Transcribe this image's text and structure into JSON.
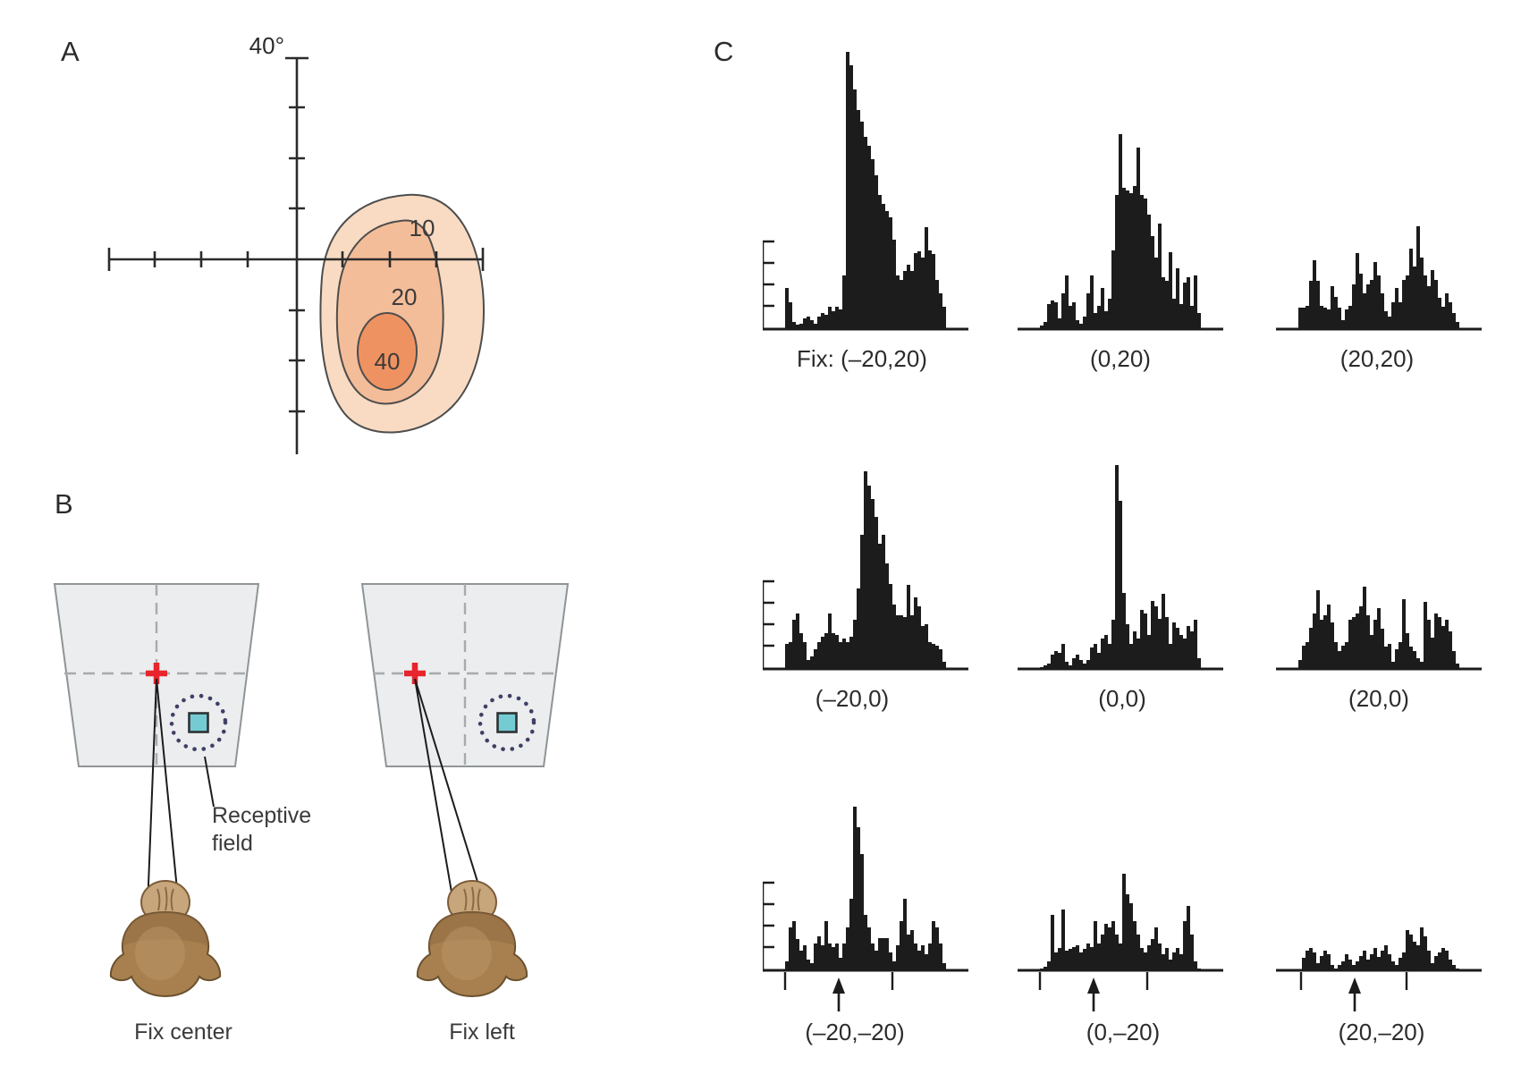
{
  "panels": {
    "a": {
      "label": "A",
      "axis_top_label": "40°",
      "contour_labels": [
        "10",
        "20",
        "40"
      ]
    },
    "b": {
      "label": "B",
      "receptive_field_label": "Receptive field",
      "captions": {
        "left": "Fix center",
        "right": "Fix left"
      }
    },
    "c": {
      "label": "C"
    }
  },
  "chart_data": [
    {
      "type": "contour",
      "title": "Receptive field response contours (spikes/s)",
      "axis_top_label": "40°",
      "axis_extent_deg": 40,
      "tick_step_deg": 10,
      "levels": [
        {
          "label": "10",
          "fill": "#f8dbc2"
        },
        {
          "label": "20",
          "fill": "#f4bd99"
        },
        {
          "label": "40",
          "fill": "#ef9261"
        }
      ],
      "field_center_quadrant": "lower-right"
    },
    {
      "type": "bar",
      "title": "Response histograms at nine fixation positions",
      "bar_color": "#1c1c1c",
      "y_scale_bar_ticks": 4,
      "stimulus_onset_arrow_rows": [
        2
      ],
      "histograms": [
        {
          "fixation_label": "Fix: (–20,20)",
          "row": 0,
          "col": 0,
          "values": [
            46,
            30,
            8,
            5,
            6,
            12,
            14,
            10,
            6,
            14,
            18,
            16,
            25,
            20,
            25,
            22,
            60,
            310,
            295,
            268,
            245,
            232,
            215,
            205,
            190,
            172,
            150,
            140,
            132,
            125,
            100,
            60,
            55,
            65,
            72,
            65,
            85,
            87,
            80,
            114,
            88,
            84,
            55,
            40,
            25
          ]
        },
        {
          "fixation_label": "(0,20)",
          "row": 0,
          "col": 1,
          "values": [
            4,
            8,
            28,
            32,
            30,
            12,
            40,
            60,
            26,
            30,
            10,
            6,
            14,
            40,
            60,
            18,
            26,
            46,
            20,
            34,
            88,
            150,
            218,
            158,
            155,
            152,
            160,
            203,
            150,
            146,
            128,
            104,
            80,
            118,
            58,
            54,
            86,
            34,
            68,
            28,
            52,
            58,
            26,
            60,
            18
          ]
        },
        {
          "fixation_label": "(20,20)",
          "row": 0,
          "col": 2,
          "values": [
            24,
            24,
            26,
            54,
            77,
            54,
            26,
            24,
            22,
            48,
            36,
            24,
            10,
            22,
            26,
            50,
            85,
            62,
            40,
            50,
            55,
            75,
            60,
            40,
            20,
            14,
            30,
            46,
            30,
            55,
            60,
            90,
            70,
            115,
            80,
            60,
            48,
            66,
            55,
            35,
            25,
            40,
            30,
            18,
            8
          ]
        },
        {
          "fixation_label": "(–20,0)",
          "row": 1,
          "col": 0,
          "values": [
            28,
            30,
            55,
            62,
            40,
            30,
            10,
            14,
            22,
            30,
            36,
            40,
            62,
            40,
            38,
            30,
            34,
            30,
            36,
            55,
            90,
            150,
            221,
            205,
            190,
            170,
            140,
            150,
            118,
            95,
            72,
            60,
            60,
            58,
            94,
            60,
            80,
            70,
            48,
            50,
            30,
            28,
            26,
            22,
            8
          ]
        },
        {
          "fixation_label": "(0,0)",
          "row": 1,
          "col": 1,
          "values": [
            2,
            4,
            6,
            16,
            20,
            18,
            28,
            8,
            4,
            12,
            16,
            10,
            6,
            10,
            24,
            28,
            18,
            34,
            38,
            28,
            55,
            228,
            188,
            85,
            50,
            28,
            42,
            34,
            66,
            62,
            38,
            76,
            70,
            56,
            84,
            58,
            28,
            52,
            46,
            38,
            34,
            48,
            42,
            55,
            12
          ]
        },
        {
          "fixation_label": "(20,0)",
          "row": 1,
          "col": 2,
          "values": [
            10,
            26,
            30,
            46,
            62,
            88,
            55,
            60,
            72,
            52,
            30,
            20,
            26,
            30,
            55,
            58,
            62,
            70,
            92,
            60,
            38,
            55,
            68,
            45,
            25,
            28,
            8,
            22,
            30,
            78,
            40,
            25,
            20,
            12,
            8,
            75,
            55,
            35,
            62,
            58,
            48,
            55,
            42,
            20,
            6
          ]
        },
        {
          "fixation_label": "(–20,–20)",
          "row": 2,
          "col": 0,
          "values": [
            10,
            48,
            55,
            35,
            22,
            28,
            12,
            8,
            30,
            38,
            28,
            55,
            30,
            26,
            30,
            14,
            30,
            48,
            80,
            183,
            160,
            130,
            62,
            48,
            30,
            22,
            36,
            36,
            36,
            20,
            10,
            28,
            55,
            80,
            40,
            45,
            30,
            22,
            28,
            18,
            30,
            55,
            48,
            30,
            8
          ]
        },
        {
          "fixation_label": "(0,–20)",
          "row": 2,
          "col": 1,
          "values": [
            2,
            4,
            10,
            62,
            20,
            25,
            68,
            22,
            24,
            26,
            28,
            20,
            24,
            30,
            26,
            55,
            30,
            40,
            52,
            48,
            55,
            40,
            30,
            108,
            85,
            75,
            55,
            40,
            25,
            20,
            28,
            35,
            48,
            30,
            18,
            25,
            12,
            20,
            25,
            18,
            55,
            72,
            40,
            10,
            2
          ]
        },
        {
          "fixation_label": "(20,–20)",
          "row": 2,
          "col": 2,
          "values": [
            0,
            14,
            22,
            25,
            20,
            8,
            16,
            22,
            18,
            6,
            2,
            6,
            10,
            18,
            12,
            6,
            10,
            16,
            22,
            12,
            18,
            25,
            15,
            22,
            28,
            18,
            10,
            6,
            14,
            20,
            45,
            40,
            32,
            28,
            48,
            38,
            22,
            8,
            16,
            20,
            25,
            22,
            12,
            6,
            2
          ]
        }
      ]
    }
  ]
}
